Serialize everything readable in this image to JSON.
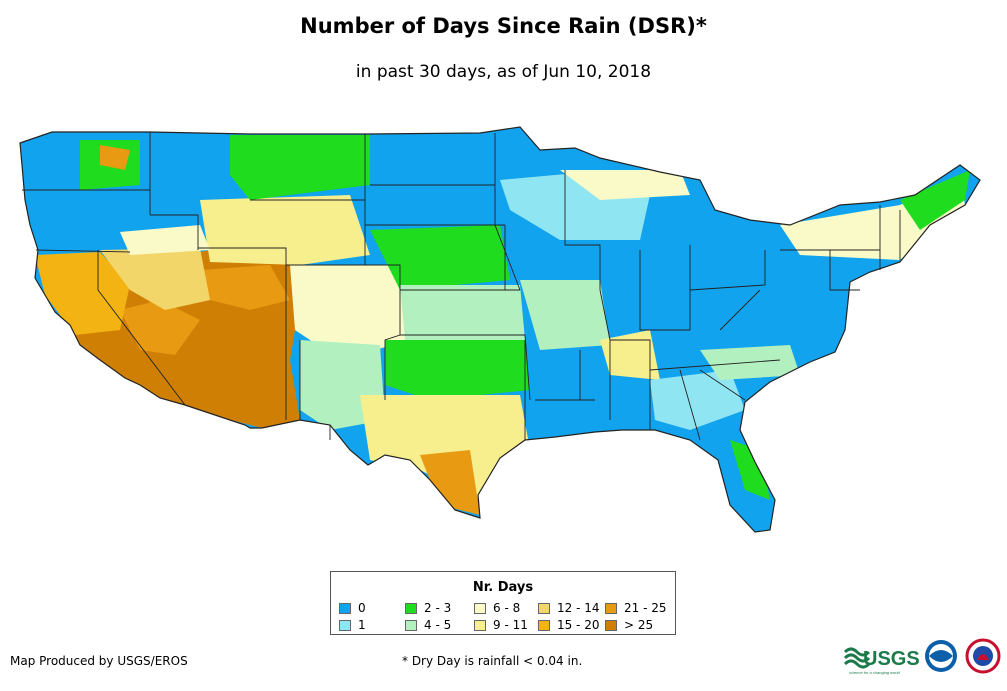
{
  "title": "Number of Days Since Rain (DSR)*",
  "subtitle": "in past 30 days, as of Jun 10, 2018",
  "legend": {
    "title": "Nr. Days",
    "items": [
      {
        "label": "0",
        "color": "#12a3ee"
      },
      {
        "label": "1",
        "color": "#8fe6f2"
      },
      {
        "label": "2 - 3",
        "color": "#1fdc1f"
      },
      {
        "label": "4 - 5",
        "color": "#b2f1bf"
      },
      {
        "label": "6 - 8",
        "color": "#fafac8"
      },
      {
        "label": "9 - 11",
        "color": "#f7ee8d"
      },
      {
        "label": "12 - 14",
        "color": "#f3d669"
      },
      {
        "label": "15 - 20",
        "color": "#f3b312"
      },
      {
        "label": "21 - 25",
        "color": "#e79a12"
      },
      {
        "label": "> 25",
        "color": "#cf7f04"
      }
    ]
  },
  "credit": "Map Produced by USGS/EROS",
  "footnote": "* Dry Day is rainfall < 0.04 in.",
  "logos": {
    "usgs_text": "USGS",
    "usgs_tagline": "science for a changing world"
  }
}
